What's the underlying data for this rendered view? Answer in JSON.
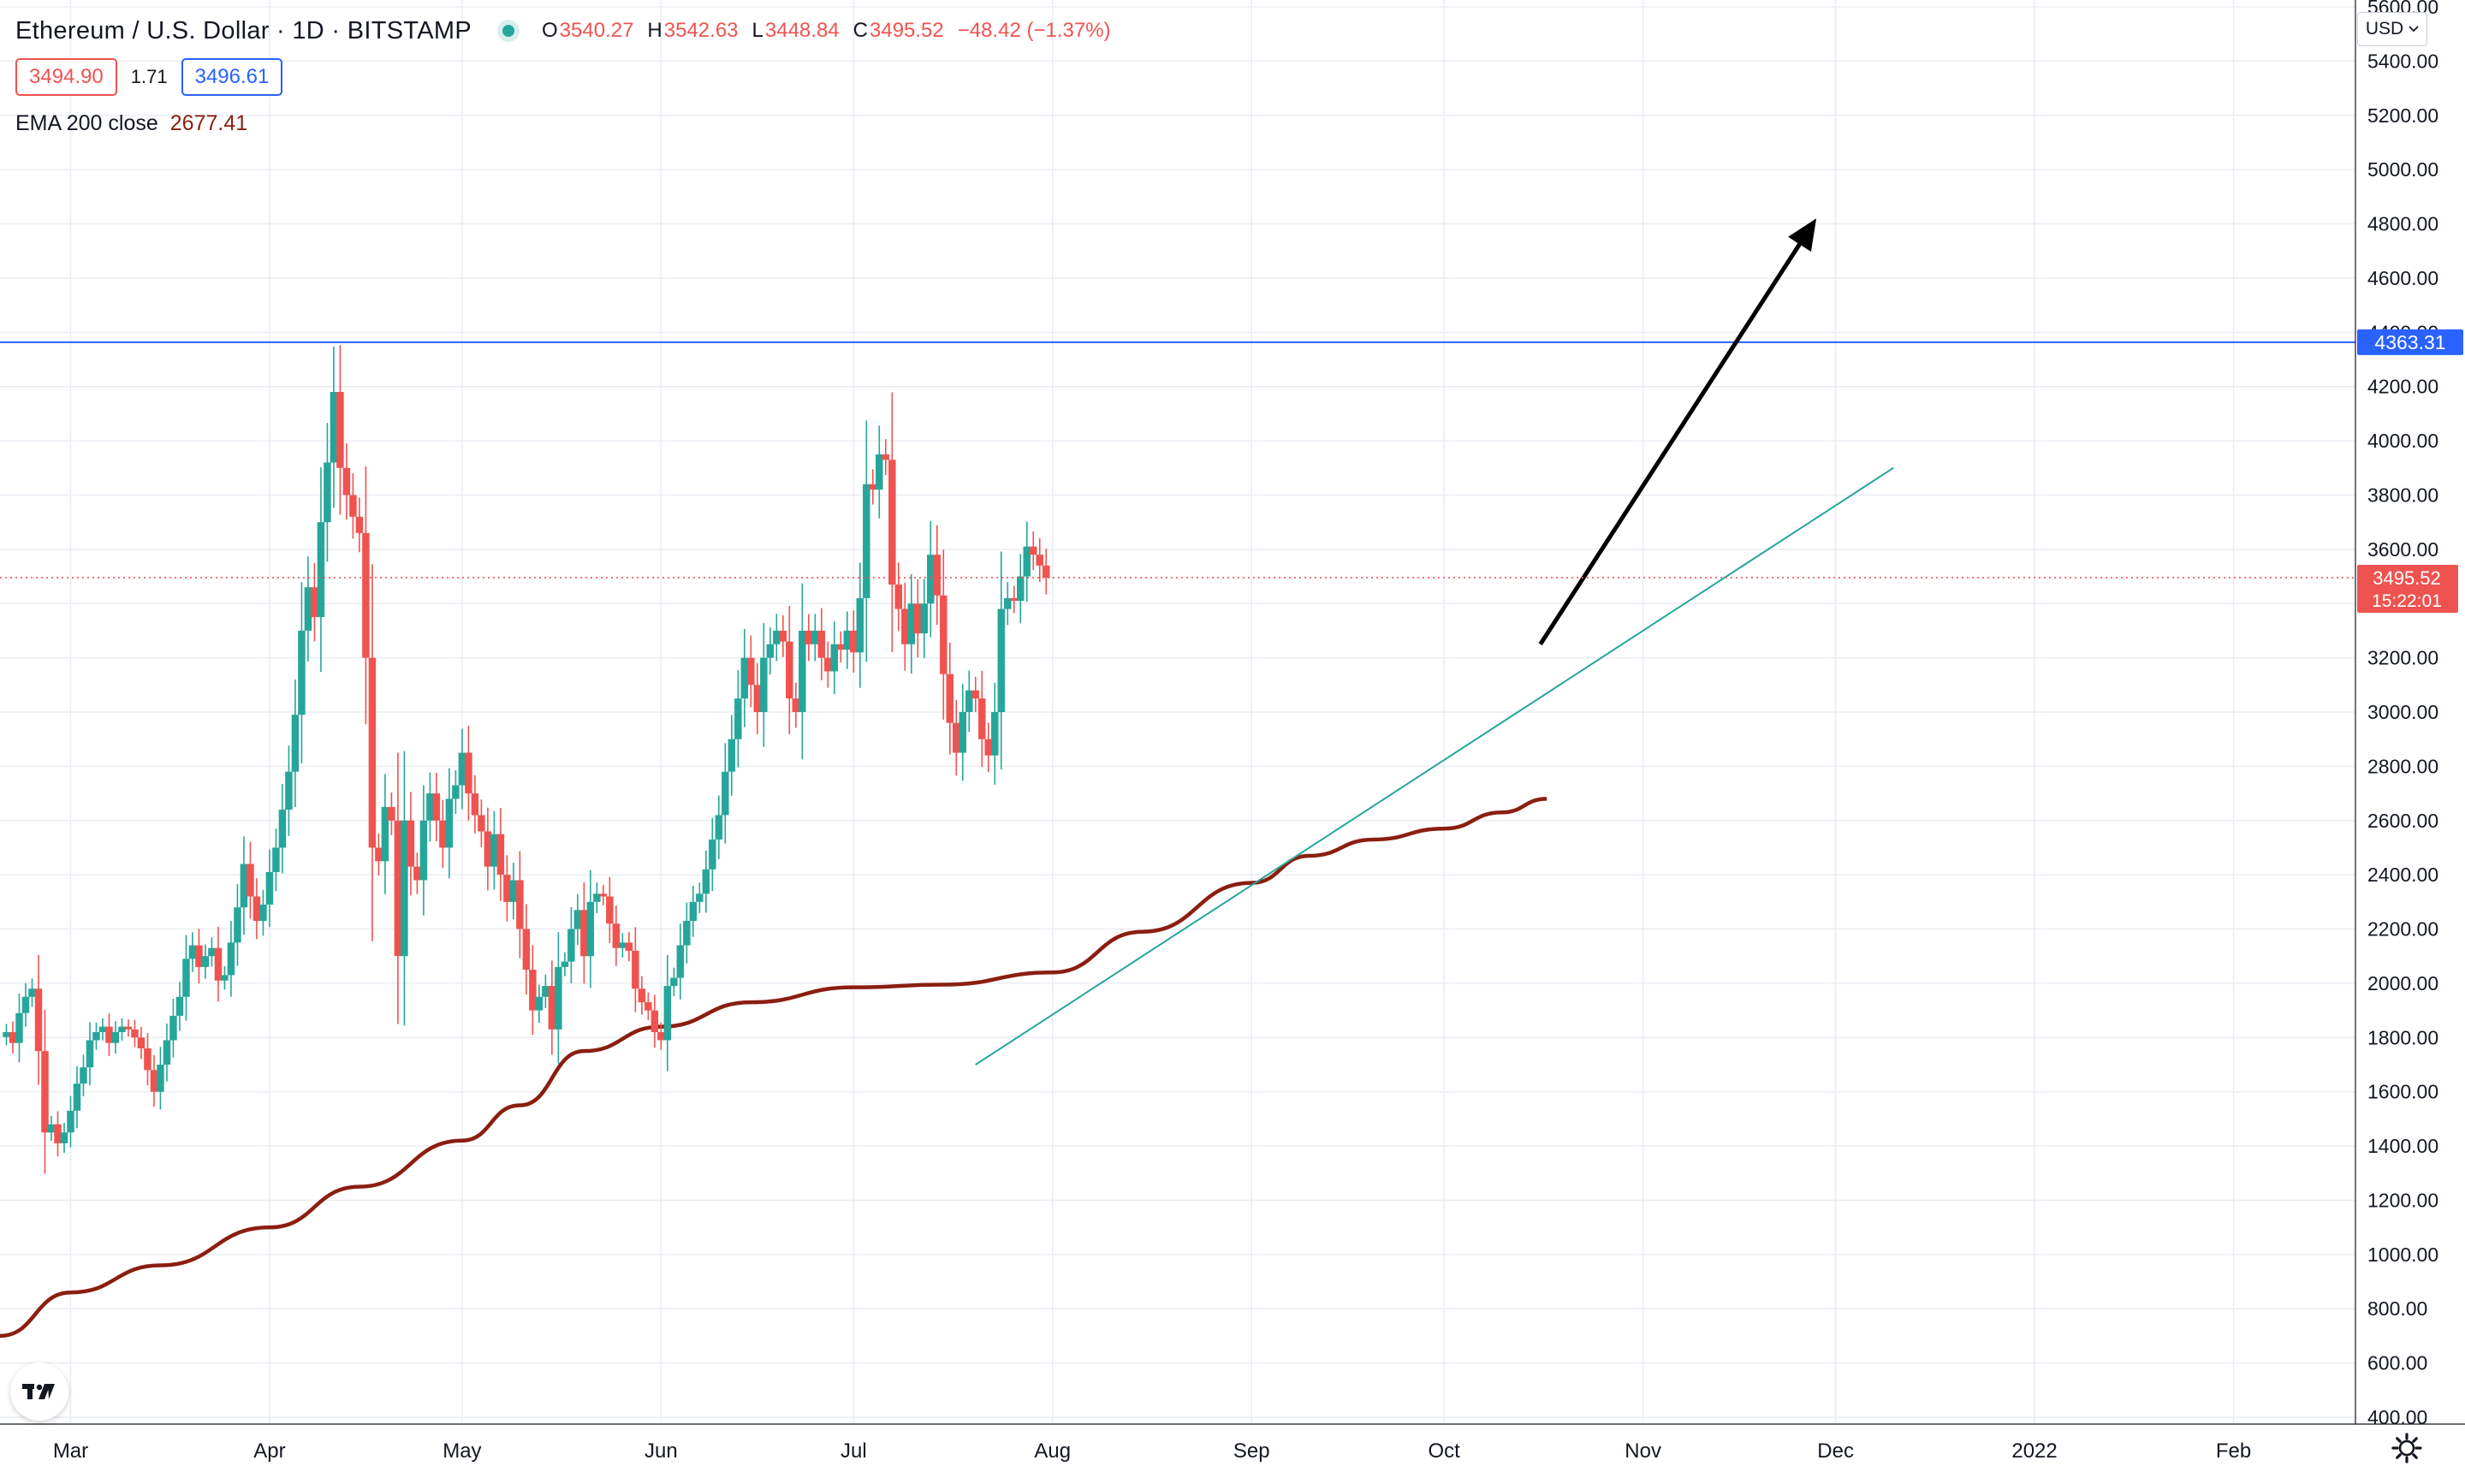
{
  "header": {
    "symbol_title": "Ethereum / U.S. Dollar · 1D · BITSTAMP",
    "ohlc": [
      {
        "key": "O",
        "value": "3540.27"
      },
      {
        "key": "H",
        "value": "3542.63"
      },
      {
        "key": "L",
        "value": "3448.84"
      },
      {
        "key": "C",
        "value": "3495.52"
      },
      {
        "key": "",
        "value": "−48.42 (−1.37%)"
      }
    ],
    "bid": "3494.90",
    "spread": "1.71",
    "ask": "3496.61",
    "indicator_name": "EMA 200 close",
    "indicator_value": "2677.41",
    "currency": "USD"
  },
  "colors": {
    "up": "#26a69a",
    "down": "#ef5350",
    "ema": "#8b1e10",
    "resistance": "#2962ff",
    "trendline": "#26a69a",
    "arrow": "#000000",
    "grid": "#e9edf3",
    "last_price": "#ef5350"
  },
  "icons": {
    "logo": "tradingview-logo-icon",
    "settings": "gear-icon",
    "currency_dropdown": "chevron-down-icon"
  },
  "chart_data": {
    "type": "candlestick",
    "symbol": "ETHUSD",
    "exchange": "BITSTAMP",
    "interval": "1D",
    "ylim": [
      400,
      5600
    ],
    "y_ticks": [
      "400.00",
      "600.00",
      "800.00",
      "1000.00",
      "1200.00",
      "1400.00",
      "1600.00",
      "1800.00",
      "2000.00",
      "2200.00",
      "2400.00",
      "2600.00",
      "2800.00",
      "3000.00",
      "3200.00",
      "3400.00",
      "3600.00",
      "3800.00",
      "4000.00",
      "4200.00",
      "4400.00",
      "4600.00",
      "4800.00",
      "5000.00",
      "5200.00",
      "5400.00",
      "5600.00"
    ],
    "x_ticks": [
      {
        "label": "Mar",
        "date": "2021-03-01"
      },
      {
        "label": "Apr",
        "date": "2021-04-01"
      },
      {
        "label": "May",
        "date": "2021-05-01"
      },
      {
        "label": "Jun",
        "date": "2021-06-01"
      },
      {
        "label": "Jul",
        "date": "2021-07-01"
      },
      {
        "label": "Aug",
        "date": "2021-08-01"
      },
      {
        "label": "Sep",
        "date": "2021-09-01"
      },
      {
        "label": "Oct",
        "date": "2021-10-01"
      },
      {
        "label": "Nov",
        "date": "2021-11-01"
      },
      {
        "label": "Dec",
        "date": "2021-12-01"
      },
      {
        "label": "2022",
        "date": "2022-01-01"
      },
      {
        "label": "Feb",
        "date": "2022-02-01"
      }
    ],
    "x_range": [
      "2021-02-18",
      "2022-02-20"
    ],
    "candle_start_date": "2021-02-19",
    "candles_close": [
      1820,
      1780,
      1890,
      1950,
      1980,
      1750,
      1450,
      1480,
      1410,
      1450,
      1530,
      1630,
      1690,
      1790,
      1820,
      1840,
      1780,
      1820,
      1840,
      1830,
      1800,
      1760,
      1680,
      1600,
      1700,
      1790,
      1880,
      1950,
      2090,
      2140,
      2060,
      2100,
      2130,
      2010,
      2030,
      2150,
      2280,
      2440,
      2320,
      2230,
      2290,
      2410,
      2500,
      2640,
      2780,
      2990,
      3300,
      3460,
      3350,
      3700,
      3920,
      4180,
      3900,
      3800,
      3720,
      3660,
      3200,
      2500,
      2450,
      2650,
      2600,
      2100,
      2600,
      2430,
      2380,
      2600,
      2700,
      2600,
      2500,
      2680,
      2730,
      2850,
      2700,
      2620,
      2560,
      2430,
      2550,
      2400,
      2300,
      2380,
      2200,
      2050,
      1900,
      1950,
      1990,
      1830,
      2060,
      2080,
      2200,
      2270,
      2100,
      2300,
      2330,
      2320,
      2220,
      2130,
      2150,
      2120,
      1980,
      1930,
      1900,
      1820,
      1790,
      1990,
      2020,
      2140,
      2230,
      2300,
      2330,
      2420,
      2530,
      2620,
      2780,
      2900,
      3050,
      3200,
      3100,
      3000,
      3200,
      3250,
      3300,
      3260,
      3050,
      3000,
      3300,
      3250,
      3300,
      3200,
      3150,
      3250,
      3230,
      3300,
      3220,
      3420,
      3840,
      3820,
      3950,
      3930,
      3470,
      3380,
      3250,
      3400,
      3290,
      3400,
      3580,
      3430,
      3140,
      2960,
      2850,
      3000,
      3080,
      3050,
      2900,
      2840,
      3000,
      3380,
      3420,
      3410,
      3500,
      3610,
      3580,
      3540,
      3495.52
    ],
    "last_close": 3495.52,
    "last_label": "3495.52",
    "countdown": "15:22:01",
    "ema200": {
      "name": "EMA 200 close",
      "last_value": 2677.41,
      "points": [
        {
          "date": "2021-02-18",
          "value": 700
        },
        {
          "date": "2021-03-01",
          "value": 860
        },
        {
          "date": "2021-03-15",
          "value": 960
        },
        {
          "date": "2021-04-01",
          "value": 1100
        },
        {
          "date": "2021-04-15",
          "value": 1250
        },
        {
          "date": "2021-05-01",
          "value": 1420
        },
        {
          "date": "2021-05-10",
          "value": 1550
        },
        {
          "date": "2021-05-20",
          "value": 1750
        },
        {
          "date": "2021-06-01",
          "value": 1840
        },
        {
          "date": "2021-06-15",
          "value": 1930
        },
        {
          "date": "2021-07-01",
          "value": 1985
        },
        {
          "date": "2021-07-15",
          "value": 1995
        },
        {
          "date": "2021-08-01",
          "value": 2040
        },
        {
          "date": "2021-08-15",
          "value": 2190
        },
        {
          "date": "2021-09-01",
          "value": 2370
        },
        {
          "date": "2021-09-10",
          "value": 2470
        },
        {
          "date": "2021-09-20",
          "value": 2530
        },
        {
          "date": "2021-10-01",
          "value": 2570
        },
        {
          "date": "2021-10-10",
          "value": 2630
        },
        {
          "date": "2021-10-17",
          "value": 2680
        }
      ]
    },
    "resistance": {
      "value": 4363.31,
      "label": "4363.31"
    },
    "trendline": {
      "start": {
        "date": "2021-07-20",
        "value": 1700
      },
      "end": {
        "date": "2021-12-10",
        "value": 3900
      }
    },
    "arrow": {
      "start": {
        "date": "2021-10-16",
        "value": 3250
      },
      "end": {
        "date": "2021-11-28",
        "value": 4820
      }
    }
  }
}
